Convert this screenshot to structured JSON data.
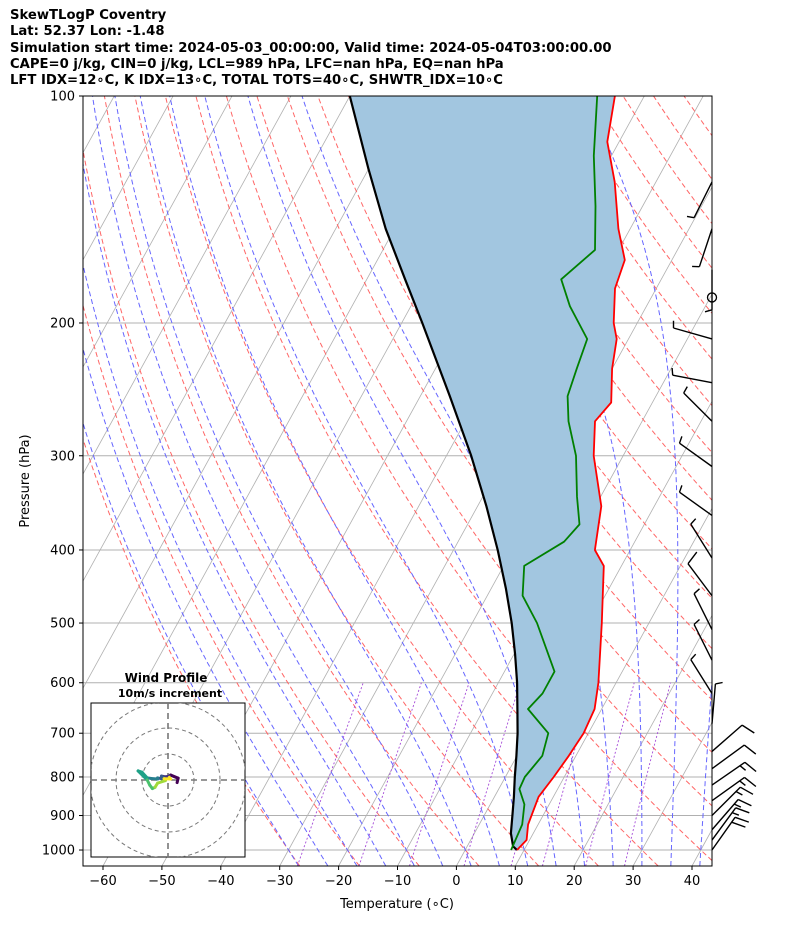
{
  "header": {
    "lines": [
      "SkewTLogP Coventry",
      "Lat: 52.37   Lon: -1.48",
      "Simulation start time: 2024-05-03_00:00:00, Valid time: 2024-05-04T03:00:00.00",
      "CAPE=0 j/kg, CIN=0 j/kg, LCL=989 hPa, LFC=nan hPa, EQ=nan hPa",
      "LFT IDX=12∘C, K IDX=13∘C, TOTAL TOTS=40∘C, SHWTR_IDX=10∘C"
    ]
  },
  "chart_data": [
    {
      "type": "line",
      "title": "",
      "xlabel": "Temperature (∘C)",
      "ylabel": "Pressure (hPa)",
      "xlim": [
        -60,
        40
      ],
      "ylim": [
        1050,
        100
      ],
      "yscale": "log",
      "skew": true,
      "grid": true,
      "x_ticks": [
        -60,
        -50,
        -40,
        -30,
        -20,
        -10,
        0,
        10,
        20,
        30,
        40
      ],
      "x_tick_labels": [
        "−60",
        "−50",
        "−40",
        "−30",
        "−20",
        "−10",
        "0",
        "10",
        "20",
        "30",
        "40"
      ],
      "y_ticks": [
        1000,
        900,
        800,
        700,
        600,
        500,
        400,
        300,
        200,
        100
      ],
      "y_tick_labels": [
        "1000",
        "900",
        "800",
        "700",
        "600",
        "500",
        "400",
        "300",
        "200",
        "100"
      ],
      "colors": {
        "temperature": "#ff0000",
        "dewpoint": "#008000",
        "parcel": "#000000",
        "fill": "#a2c6e0",
        "dry_adiabats": "#ff6666",
        "moist_adiabats": "#6666ff",
        "mixing_ratio": "#a64dd9",
        "isotherms": "#b0b0b0"
      },
      "series": [
        {
          "key": "temperature",
          "points": [
            [
              8.8,
              1000
            ],
            [
              9.5,
              970
            ],
            [
              8.3,
              925
            ],
            [
              7.5,
              850
            ],
            [
              8.2,
              800
            ],
            [
              8.8,
              750
            ],
            [
              9.2,
              700
            ],
            [
              8.8,
              650
            ],
            [
              7.0,
              600
            ],
            [
              2.0,
              500
            ],
            [
              -3.0,
              420
            ],
            [
              -6.0,
              400
            ],
            [
              -9.0,
              350
            ],
            [
              -15.0,
              300
            ],
            [
              -18.0,
              270
            ],
            [
              -17.0,
              255
            ],
            [
              -20.0,
              230
            ],
            [
              -22.0,
              210
            ],
            [
              -24.0,
              200
            ],
            [
              -27.0,
              180
            ],
            [
              -28.0,
              165
            ],
            [
              -32.0,
              150
            ],
            [
              -37.0,
              130
            ],
            [
              -42.0,
              115
            ],
            [
              -45.0,
              100
            ]
          ]
        },
        {
          "key": "dewpoint",
          "points": [
            [
              7.8,
              1000
            ],
            [
              7.3,
              925
            ],
            [
              5.8,
              870
            ],
            [
              3.5,
              830
            ],
            [
              3.3,
              800
            ],
            [
              4.3,
              750
            ],
            [
              3.2,
              700
            ],
            [
              -2.5,
              650
            ],
            [
              -1.5,
              620
            ],
            [
              -1.5,
              580
            ],
            [
              -9.0,
              500
            ],
            [
              -14.0,
              460
            ],
            [
              -16.5,
              420
            ],
            [
              -12.0,
              390
            ],
            [
              -11.0,
              370
            ],
            [
              -14.0,
              340
            ],
            [
              -18.0,
              300
            ],
            [
              -22.5,
              270
            ],
            [
              -25.0,
              250
            ],
            [
              -26.0,
              230
            ],
            [
              -27.0,
              210
            ],
            [
              -33.0,
              190
            ],
            [
              -37.0,
              175
            ],
            [
              -34.0,
              160
            ],
            [
              -38.0,
              140
            ],
            [
              -43.0,
              120
            ],
            [
              -48.0,
              100
            ]
          ]
        },
        {
          "key": "parcel",
          "points": [
            [
              8.8,
              1000
            ],
            [
              7.8,
              989
            ],
            [
              6.2,
              950
            ],
            [
              4.8,
              900
            ],
            [
              3.3,
              850
            ],
            [
              1.6,
              800
            ],
            [
              -0.1,
              750
            ],
            [
              -2.0,
              700
            ],
            [
              -4.3,
              650
            ],
            [
              -6.8,
              600
            ],
            [
              -9.8,
              550
            ],
            [
              -13.3,
              500
            ],
            [
              -17.5,
              450
            ],
            [
              -22.5,
              400
            ],
            [
              -28.5,
              350
            ],
            [
              -35.8,
              300
            ],
            [
              -45.0,
              250
            ],
            [
              -56.5,
              200
            ],
            [
              -63.5,
              175
            ],
            [
              -71.5,
              150
            ],
            [
              -80.0,
              125
            ],
            [
              -90.0,
              100
            ]
          ]
        }
      ],
      "wind_barbs": {
        "points": [
          {
            "p": 1000,
            "u": -6.0,
            "v": -8.5
          },
          {
            "p": 970,
            "u": -5.5,
            "v": -7.5
          },
          {
            "p": 940,
            "u": -6.5,
            "v": -7.5
          },
          {
            "p": 900,
            "u": -6.5,
            "v": -6.5
          },
          {
            "p": 860,
            "u": -7.0,
            "v": -5.0
          },
          {
            "p": 820,
            "u": -6.5,
            "v": -4.5
          },
          {
            "p": 780,
            "u": -5.5,
            "v": -4.0
          },
          {
            "p": 740,
            "u": -4.0,
            "v": -3.5
          },
          {
            "p": 680,
            "u": -0.3,
            "v": -3.5
          },
          {
            "p": 620,
            "u": 2.0,
            "v": -3.2
          },
          {
            "p": 560,
            "u": 2.0,
            "v": -4.0
          },
          {
            "p": 510,
            "u": 2.0,
            "v": -4.0
          },
          {
            "p": 460,
            "u": 3.0,
            "v": -4.0
          },
          {
            "p": 410,
            "u": 2.5,
            "v": -4.0
          },
          {
            "p": 360,
            "u": 3.5,
            "v": -2.5
          },
          {
            "p": 310,
            "u": 3.5,
            "v": -2.5
          },
          {
            "p": 270,
            "u": 3.0,
            "v": -3.0
          },
          {
            "p": 240,
            "u": 4.2,
            "v": -0.8
          },
          {
            "p": 210,
            "u": 3.5,
            "v": -1.0
          },
          {
            "p": 185,
            "u": 0,
            "v": 0,
            "calm": true
          },
          {
            "p": 170,
            "u": 0.0,
            "v": 3.0
          },
          {
            "p": 150,
            "u": 1.0,
            "v": 3.0
          },
          {
            "p": 130,
            "u": 1.5,
            "v": 3.0
          }
        ]
      }
    },
    {
      "type": "line",
      "title": "Wind Profile",
      "subtitle": "10m/s increment",
      "ring_step": 10,
      "rings": 3,
      "colormap": "viridis",
      "hodograph": [
        [
          3.5,
          -1.0
        ],
        [
          3.9,
          0.7
        ],
        [
          1.0,
          1.9
        ],
        [
          -0.1,
          1.1
        ],
        [
          0.5,
          1.5
        ],
        [
          -1.0,
          1.2
        ],
        [
          -2.5,
          1.5
        ],
        [
          -1.8,
          1.0
        ],
        [
          -2.5,
          0.5
        ],
        [
          -4.0,
          0.8
        ],
        [
          -4.0,
          0.4
        ],
        [
          -6.5,
          0.6
        ],
        [
          -8.0,
          0.8
        ],
        [
          -10.0,
          3.0
        ],
        [
          -11.5,
          3.5
        ],
        [
          -8.0,
          0.0
        ],
        [
          -7.0,
          -2.0
        ],
        [
          -6.0,
          -3.3
        ],
        [
          -5.0,
          -2.8
        ],
        [
          -4.0,
          -1.2
        ],
        [
          -1.0,
          -0.2
        ],
        [
          -1.5,
          0.5
        ],
        [
          1.0,
          0.4
        ],
        [
          0.5,
          1.0
        ]
      ]
    }
  ]
}
